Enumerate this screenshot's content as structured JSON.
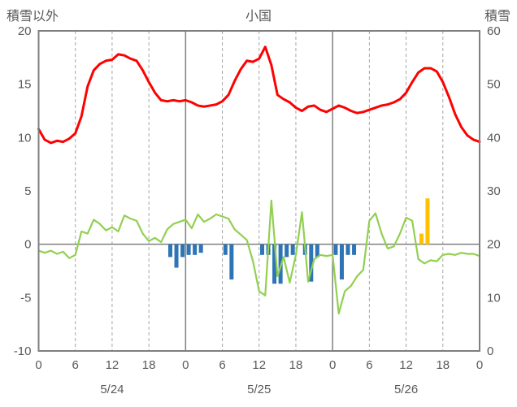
{
  "header": {
    "left_axis_label": "積雪以外",
    "title": "小国",
    "right_axis_label": "積雪"
  },
  "chart_data": {
    "type": "line+bar",
    "title": "小国",
    "station": "小国",
    "x_axis": {
      "unit": "hour",
      "min": 0,
      "max": 72,
      "ticks": [
        0,
        6,
        12,
        18,
        24,
        30,
        36,
        42,
        48,
        54,
        60,
        66,
        72
      ],
      "tick_labels": [
        "0",
        "6",
        "12",
        "18",
        "0",
        "6",
        "12",
        "18",
        "0",
        "6",
        "12",
        "18",
        "0"
      ],
      "dashed_gridlines": [
        6,
        12,
        18,
        30,
        36,
        42,
        54,
        60,
        66
      ],
      "solid_gridlines": [
        24,
        48
      ],
      "day_labels": [
        {
          "hour": 12,
          "label": "5/24"
        },
        {
          "hour": 36,
          "label": "5/25"
        },
        {
          "hour": 60,
          "label": "5/26"
        }
      ]
    },
    "left_axis": {
      "label": "積雪以外",
      "min": -10,
      "max": 20,
      "ticks": [
        20,
        15,
        10,
        5,
        0,
        -5,
        -10
      ]
    },
    "right_axis": {
      "label": "積雪",
      "min": 0,
      "max": 60,
      "ticks": [
        60,
        50,
        40,
        30,
        20,
        10,
        0
      ]
    },
    "grid": "vertical-only",
    "legend": "none",
    "zero_line": true,
    "colors": {
      "frame": "#7f7f7f",
      "grid_solid": "#7f7f7f",
      "grid_dashed": "#a6a6a6",
      "zero_line": "#7f7f7f",
      "text": "#595959",
      "background": "#ffffff",
      "red_line": "#ff0000",
      "green_line": "#92d050",
      "blue_bar": "#2e75b6",
      "orange_bar": "#ffc000"
    },
    "series": [
      {
        "name": "red-line",
        "type": "line",
        "axis": "left",
        "color": "#ff0000",
        "stroke_width": 3,
        "x_step_hours": 1,
        "values": [
          10.8,
          9.8,
          9.5,
          9.7,
          9.6,
          9.9,
          10.4,
          12.0,
          14.8,
          16.3,
          16.9,
          17.2,
          17.3,
          17.8,
          17.7,
          17.4,
          17.2,
          16.3,
          15.2,
          14.2,
          13.5,
          13.4,
          13.5,
          13.4,
          13.5,
          13.3,
          13.0,
          12.9,
          13.0,
          13.1,
          13.4,
          14.0,
          15.3,
          16.4,
          17.2,
          17.1,
          17.4,
          18.5,
          16.8,
          14.0,
          13.6,
          13.3,
          12.8,
          12.5,
          12.9,
          13.0,
          12.6,
          12.4,
          12.7,
          13.0,
          12.8,
          12.5,
          12.3,
          12.4,
          12.6,
          12.8,
          13.0,
          13.1,
          13.3,
          13.6,
          14.2,
          15.2,
          16.1,
          16.5,
          16.5,
          16.2,
          15.2,
          13.8,
          12.2,
          11.0,
          10.2,
          9.8,
          9.6
        ]
      },
      {
        "name": "green-line",
        "type": "line",
        "axis": "left",
        "color": "#92d050",
        "stroke_width": 2.2,
        "x_step_hours": 1,
        "values": [
          -0.6,
          -0.8,
          -0.6,
          -0.9,
          -0.7,
          -1.3,
          -1.0,
          1.2,
          1.0,
          2.3,
          1.9,
          1.3,
          1.6,
          1.2,
          2.7,
          2.4,
          2.2,
          1.0,
          0.3,
          0.6,
          0.2,
          1.4,
          1.9,
          2.1,
          2.3,
          1.5,
          2.8,
          2.1,
          2.4,
          2.8,
          2.6,
          2.4,
          1.4,
          0.9,
          0.4,
          -1.6,
          -4.4,
          -4.8,
          4.1,
          -3.0,
          -1.2,
          -3.6,
          -1.0,
          3.0,
          -3.5,
          -1.4,
          -1.0,
          -1.1,
          -1.0,
          -6.5,
          -4.4,
          -3.9,
          -3.0,
          -2.4,
          2.2,
          2.9,
          1.0,
          -0.4,
          -0.2,
          1.0,
          2.5,
          2.2,
          -1.4,
          -1.8,
          -1.5,
          -1.6,
          -1.0,
          -0.9,
          -1.0,
          -0.8,
          -0.9,
          -0.9,
          -1.1
        ]
      },
      {
        "name": "blue-bars",
        "type": "bar",
        "axis": "left",
        "color": "#2e75b6",
        "values": [
          0,
          0,
          0,
          0,
          0,
          0,
          0,
          0,
          0,
          0,
          0,
          0,
          0,
          0,
          0,
          0,
          0,
          0,
          0,
          0,
          0,
          -1.2,
          -2.2,
          -1.2,
          -1.0,
          -1.0,
          -0.8,
          0,
          0,
          0,
          -1.0,
          -3.3,
          0,
          0,
          0,
          0,
          -1.0,
          -1.0,
          -3.7,
          -3.7,
          -1.2,
          -1.0,
          0,
          -1.0,
          -3.5,
          -1.2,
          0,
          0,
          -1.0,
          -3.3,
          -1.0,
          -1.0,
          0,
          0,
          0,
          0,
          0,
          0,
          0,
          0,
          0,
          0,
          0,
          0,
          0,
          0,
          0,
          0,
          0,
          0,
          0,
          0
        ]
      },
      {
        "name": "orange-bars",
        "type": "bar",
        "axis": "left",
        "color": "#ffc000",
        "values": [
          0,
          0,
          0,
          0,
          0,
          0,
          0,
          0,
          0,
          0,
          0,
          0,
          0,
          0,
          0,
          0,
          0,
          0,
          0,
          0,
          0,
          0,
          0,
          0,
          0,
          0,
          0,
          0,
          0,
          0,
          0,
          0,
          0,
          0,
          0,
          0,
          0,
          0,
          0,
          0,
          0,
          0,
          0,
          0,
          0,
          0,
          0,
          0,
          0,
          0,
          0,
          0,
          0,
          0,
          0,
          0,
          0,
          0,
          0,
          0,
          0,
          0,
          1.0,
          4.3,
          0,
          0,
          0,
          0,
          0,
          0,
          0,
          0
        ]
      }
    ]
  }
}
